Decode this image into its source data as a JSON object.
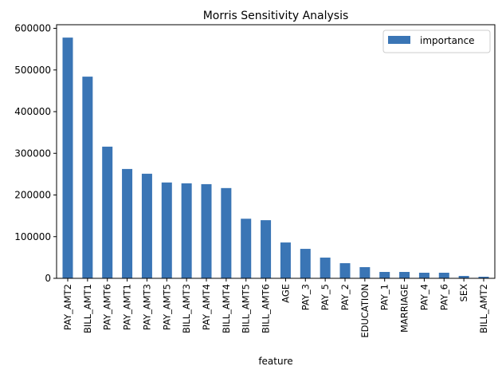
{
  "chart_data": {
    "type": "bar",
    "title": "Morris Sensitivity Analysis",
    "xlabel": "feature",
    "ylabel": "",
    "ylim": [
      0,
      610000
    ],
    "yticks": [
      0,
      100000,
      200000,
      300000,
      400000,
      500000,
      600000
    ],
    "grid": false,
    "legend_position": "top-right",
    "categories": [
      "PAY_AMT2",
      "BILL_AMT1",
      "PAY_AMT6",
      "PAY_AMT1",
      "PAY_AMT3",
      "PAY_AMT5",
      "BILL_AMT3",
      "PAY_AMT4",
      "BILL_AMT4",
      "BILL_AMT5",
      "BILL_AMT6",
      "AGE",
      "PAY_3",
      "PAY_5",
      "PAY_2",
      "EDUCATION",
      "PAY_1",
      "MARRIAGE",
      "PAY_4",
      "PAY_6",
      "SEX",
      "BILL_AMT2"
    ],
    "series": [
      {
        "name": "importance",
        "color": "#3a75b5",
        "values": [
          577700,
          484000,
          316000,
          262400,
          251000,
          230000,
          228000,
          226000,
          216600,
          143000,
          139500,
          86000,
          70700,
          49700,
          36300,
          26800,
          15300,
          15300,
          13400,
          13400,
          5700,
          3800
        ]
      }
    ]
  }
}
